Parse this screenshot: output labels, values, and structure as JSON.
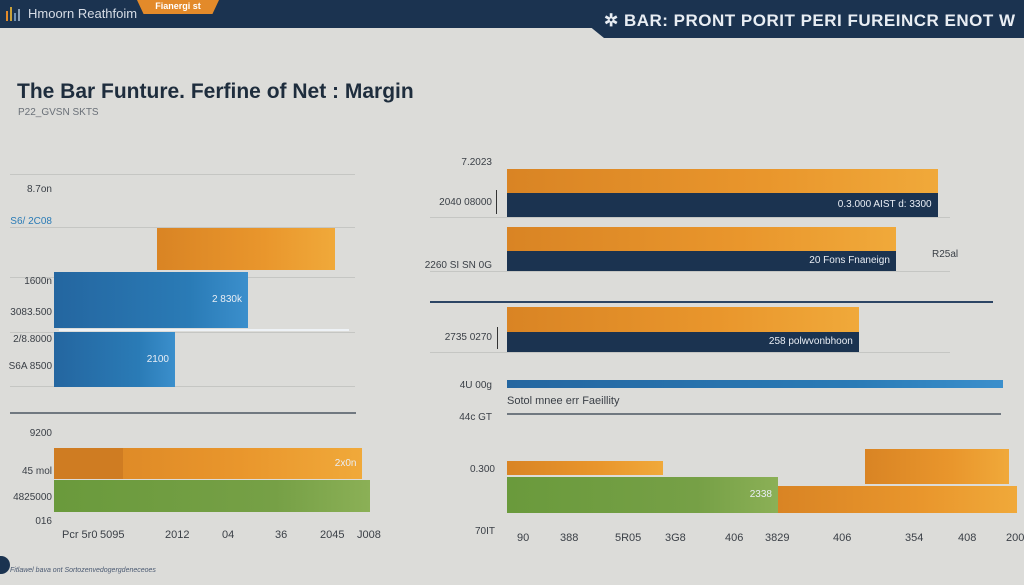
{
  "header": {
    "app_title": "Hmoorn Reathfoim",
    "tab_label": "Fianergi st",
    "banner": "BAR: PRONT PORIT PERI FUREINCR ENOT W"
  },
  "title": "The Bar Funture. Ferfine of Net : Margin",
  "subtitle": "P22_GVSN SKTS",
  "footnote": "Fitlawel bava ont Sortozenvedogergdeneceoes",
  "colors": {
    "navy": "#1b3350",
    "orange": "#e9962c",
    "blue": "#2a7bb6",
    "green": "#76a046",
    "background": "#dcdcd9"
  },
  "chart_data": [
    {
      "type": "bar",
      "orientation": "horizontal",
      "panel": "top-left",
      "tick_labels": [
        "8.7on",
        "S6/ 2C08",
        "1600n",
        "3083.500",
        "2/8.8000",
        "S6A 8500"
      ],
      "bars": [
        {
          "color": "orange",
          "value": 34,
          "label": ""
        },
        {
          "color": "blue",
          "value": 38,
          "label": "2 830k"
        },
        {
          "color": "blue",
          "value": 24,
          "label": "2100"
        }
      ]
    },
    {
      "type": "bar",
      "orientation": "horizontal",
      "panel": "top-right",
      "tick_labels": [
        "7.2023",
        "2040 08000",
        "2260 SI SN 0G",
        "2735 0270",
        "4U 00g",
        "44c GT"
      ],
      "bars": [
        {
          "color": "orange",
          "value": 93,
          "label": ""
        },
        {
          "color": "navy",
          "value": 93,
          "label": "0.3.000 AIST d: 3300"
        },
        {
          "color": "orange",
          "value": 84,
          "label": ""
        },
        {
          "color": "navy",
          "value": 84,
          "label": "20 Fons Fnaneign"
        },
        {
          "color": "orange",
          "value": 76,
          "label": ""
        },
        {
          "color": "navy",
          "value": 76,
          "label": "258 polwvonbhoon"
        },
        {
          "color": "blue",
          "value": 100,
          "label": ""
        }
      ],
      "annotations": [
        "R25al",
        "Sotol mnee err Faeillity"
      ]
    },
    {
      "type": "bar",
      "orientation": "horizontal",
      "panel": "bottom-left",
      "tick_labels": [
        "9200",
        "45 mol",
        "4825000",
        "016"
      ],
      "x_tick_labels": [
        "Pcr 5r0",
        "5095",
        "2012",
        "04",
        "36",
        "2045",
        "J008"
      ],
      "bars": [
        {
          "color": "orange",
          "value": 97,
          "label": "2x0n"
        },
        {
          "color": "green",
          "value": 98,
          "label": ""
        }
      ]
    },
    {
      "type": "bar",
      "orientation": "horizontal",
      "panel": "bottom-right",
      "tick_labels": [
        "0.300",
        "70IT"
      ],
      "x_tick_labels": [
        "90",
        "388",
        "5R05",
        "3G8",
        "406",
        "3829",
        "406",
        "354",
        "408",
        "200"
      ],
      "bars": [
        {
          "color": "orange",
          "value": 30,
          "label": ""
        },
        {
          "color": "green",
          "value": 53,
          "label": "2338"
        },
        {
          "color": "orange",
          "value": 47,
          "label": ""
        },
        {
          "color": "orange",
          "value": 28,
          "label": ""
        }
      ]
    }
  ]
}
